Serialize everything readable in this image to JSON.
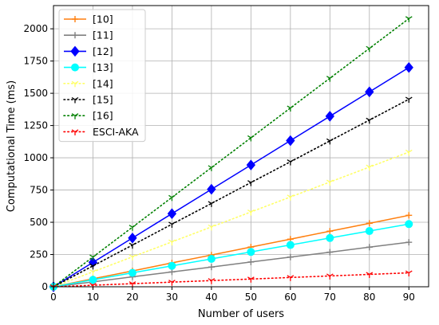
{
  "chart_data": {
    "type": "line",
    "title": "",
    "xlabel": "Number of users",
    "ylabel": "Computational Time  (ms)",
    "x": [
      0,
      10,
      20,
      30,
      40,
      50,
      60,
      70,
      80,
      90
    ],
    "xlim": [
      0,
      95
    ],
    "ylim": [
      0,
      2180
    ],
    "xticks": [
      0,
      10,
      20,
      30,
      40,
      50,
      60,
      70,
      80,
      90
    ],
    "yticks": [
      0,
      250,
      500,
      750,
      1000,
      1250,
      1500,
      1750,
      2000
    ],
    "grid": true,
    "legend_position": "upper-left",
    "series": [
      {
        "name": "[10]",
        "color": "#ff7f0e",
        "linestyle": "solid",
        "marker": "plus",
        "values": [
          0,
          62,
          123,
          185,
          246,
          308,
          369,
          431,
          492,
          554
        ]
      },
      {
        "name": "[11]",
        "color": "#808080",
        "linestyle": "solid",
        "marker": "plus",
        "values": [
          0,
          38,
          77,
          115,
          153,
          192,
          230,
          268,
          307,
          345
        ]
      },
      {
        "name": "[12]",
        "color": "#0000ff",
        "linestyle": "solid",
        "marker": "diamond",
        "values": [
          0,
          189,
          378,
          567,
          756,
          944,
          1133,
          1322,
          1511,
          1700
        ]
      },
      {
        "name": "[13]",
        "color": "#00ffff",
        "linestyle": "solid",
        "marker": "circle",
        "values": [
          0,
          54,
          108,
          162,
          216,
          270,
          324,
          378,
          432,
          486
        ]
      },
      {
        "name": "[14]",
        "color": "#ffff66",
        "linestyle": "dotted",
        "marker": "tri-down",
        "values": [
          0,
          116,
          232,
          348,
          464,
          580,
          696,
          812,
          928,
          1044
        ]
      },
      {
        "name": "[15]",
        "color": "#000000",
        "linestyle": "dotted",
        "marker": "tri-down",
        "values": [
          0,
          162,
          323,
          485,
          646,
          808,
          969,
          1131,
          1292,
          1454
        ]
      },
      {
        "name": "[16]",
        "color": "#008000",
        "linestyle": "dotted",
        "marker": "tri-down",
        "values": [
          0,
          231,
          462,
          693,
          924,
          1155,
          1386,
          1617,
          1848,
          2079
        ]
      },
      {
        "name": "ESCI-AKA",
        "color": "#ff0000",
        "linestyle": "dotted",
        "marker": "tri-down",
        "values": [
          0,
          12,
          24,
          36,
          48,
          60,
          72,
          84,
          96,
          108
        ]
      }
    ]
  }
}
